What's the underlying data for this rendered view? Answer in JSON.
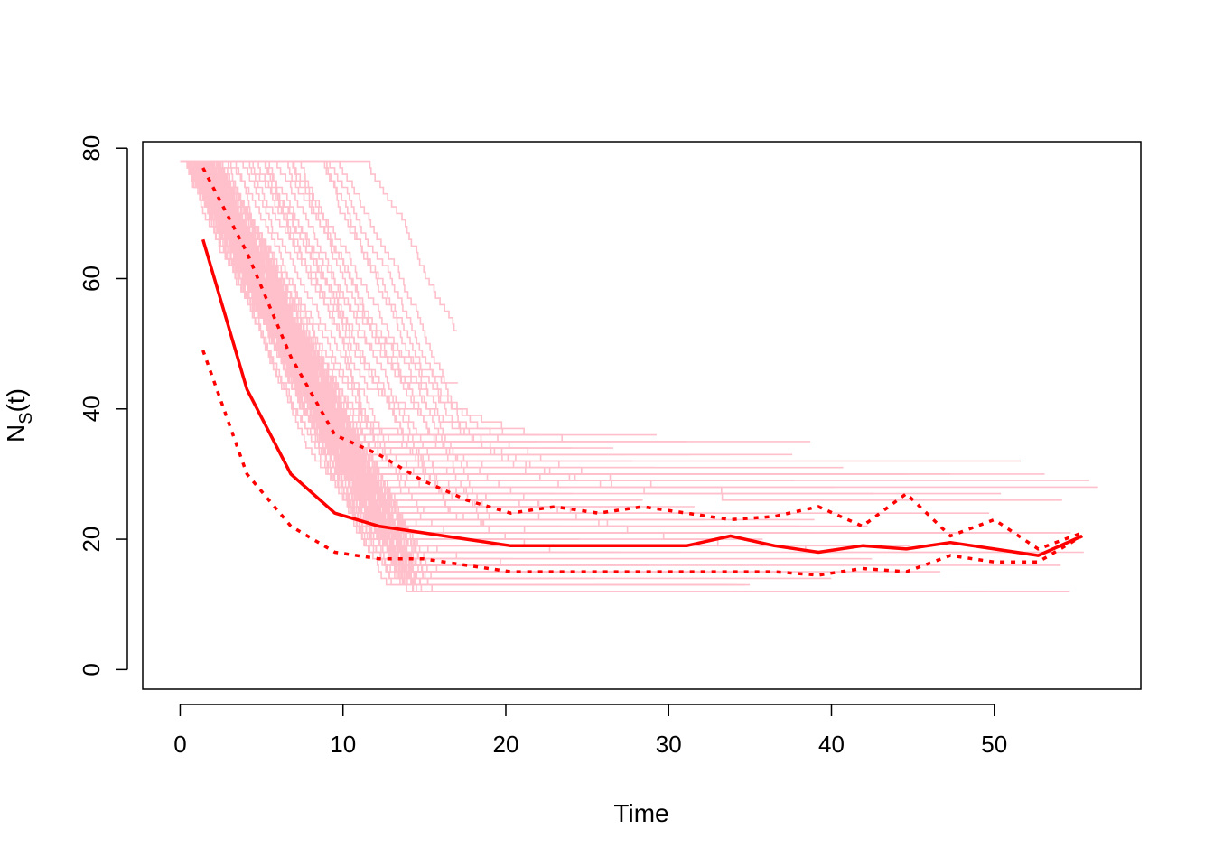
{
  "chart_data": {
    "type": "line",
    "title": "",
    "xlabel": "Time",
    "ylabel_main": "N",
    "ylabel_sub": "S",
    "ylabel_tail": "(t)",
    "xlim": [
      -2.3,
      59.0
    ],
    "ylim": [
      -3,
      81
    ],
    "xticks": [
      0,
      10,
      20,
      30,
      40,
      50
    ],
    "yticks": [
      0,
      20,
      40,
      60,
      80
    ],
    "grid": false,
    "legend": "none",
    "colors": {
      "trajectories": "#ffc0cb",
      "summary": "#ff0000"
    },
    "trajectory_generation": {
      "count": 160,
      "initial_value": 78,
      "description_note": "simulated stochastic trajectories drawn as thin pink step lines"
    },
    "series": [
      {
        "name": "median",
        "style": "solid",
        "x": [
          1.4,
          4.1,
          6.8,
          9.5,
          12.2,
          14.9,
          17.6,
          20.3,
          23.0,
          25.7,
          28.4,
          31.1,
          33.8,
          36.5,
          39.2,
          41.9,
          44.6,
          47.3,
          50.0,
          52.7,
          55.4
        ],
        "y": [
          66,
          43,
          30,
          24,
          22,
          21,
          20,
          19,
          19,
          19,
          19,
          19,
          20.5,
          19,
          18,
          19,
          18.5,
          19.5,
          18.5,
          17.5,
          20.5
        ]
      },
      {
        "name": "upper",
        "style": "dotted",
        "x": [
          1.4,
          4.1,
          6.8,
          9.5,
          12.2,
          14.9,
          17.6,
          20.3,
          23.0,
          25.7,
          28.4,
          31.1,
          33.8,
          36.5,
          39.2,
          41.9,
          44.6,
          47.3,
          50.0,
          52.7,
          55.4
        ],
        "y": [
          77,
          64,
          48,
          36,
          33,
          29,
          26,
          24,
          25,
          24,
          25,
          24,
          23,
          23.5,
          25,
          22,
          27,
          20.5,
          23,
          18.5,
          21
        ]
      },
      {
        "name": "lower",
        "style": "dotted",
        "x": [
          1.4,
          4.1,
          6.8,
          9.5,
          12.2,
          14.9,
          17.6,
          20.3,
          23.0,
          25.7,
          28.4,
          31.1,
          33.8,
          36.5,
          39.2,
          41.9,
          44.6,
          47.3,
          50.0,
          52.7,
          55.4
        ],
        "y": [
          49,
          30,
          22,
          18,
          17,
          17,
          16,
          15,
          15,
          15,
          15,
          15,
          15,
          15,
          14.5,
          15.5,
          15,
          17.5,
          16.5,
          16.5,
          20.5
        ]
      }
    ]
  }
}
